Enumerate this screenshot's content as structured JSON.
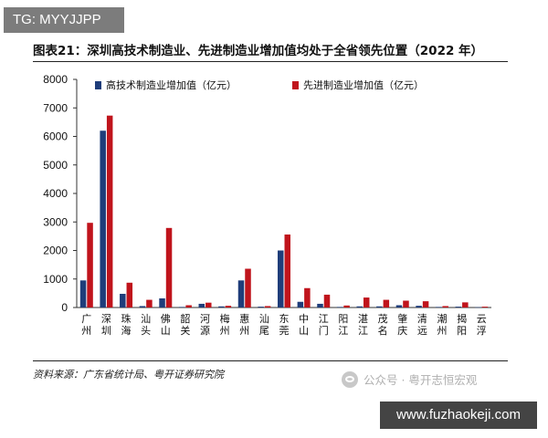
{
  "watermark_tag": "TG: MYYJJPP",
  "figure_title": "图表21：深圳高技术制造业、先进制造业增加值均处于全省领先位置（2022 年）",
  "source": "资料来源：广东省统计局、粤开证券研究院",
  "wechat_watermark": "公众号 · 粤开志恒宏观",
  "url_watermark": "www.fuzhaokeji.com",
  "colors": {
    "series1": "#1f3d7a",
    "series2": "#c0141c"
  },
  "chart_data": {
    "type": "bar",
    "categories": [
      "广州",
      "深圳",
      "珠海",
      "汕头",
      "佛山",
      "韶关",
      "河源",
      "梅州",
      "惠州",
      "汕尾",
      "东莞",
      "中山",
      "江门",
      "阳江",
      "湛江",
      "茂名",
      "肇庆",
      "清远",
      "潮州",
      "揭阳",
      "云浮"
    ],
    "series": [
      {
        "name": "高技术制造业增加值（亿元）",
        "values": [
          950,
          6200,
          480,
          50,
          320,
          20,
          130,
          40,
          950,
          30,
          2000,
          200,
          130,
          20,
          40,
          40,
          80,
          60,
          20,
          30,
          10
        ]
      },
      {
        "name": "先进制造业增加值（亿元）",
        "values": [
          2970,
          6730,
          870,
          270,
          2790,
          80,
          170,
          60,
          1360,
          50,
          2560,
          680,
          450,
          70,
          350,
          270,
          240,
          220,
          50,
          180,
          30
        ]
      }
    ],
    "yticks": [
      0,
      1000,
      2000,
      3000,
      4000,
      5000,
      6000,
      7000,
      8000
    ],
    "ylim": [
      0,
      8000
    ],
    "legend_position": "top",
    "grid": false
  }
}
